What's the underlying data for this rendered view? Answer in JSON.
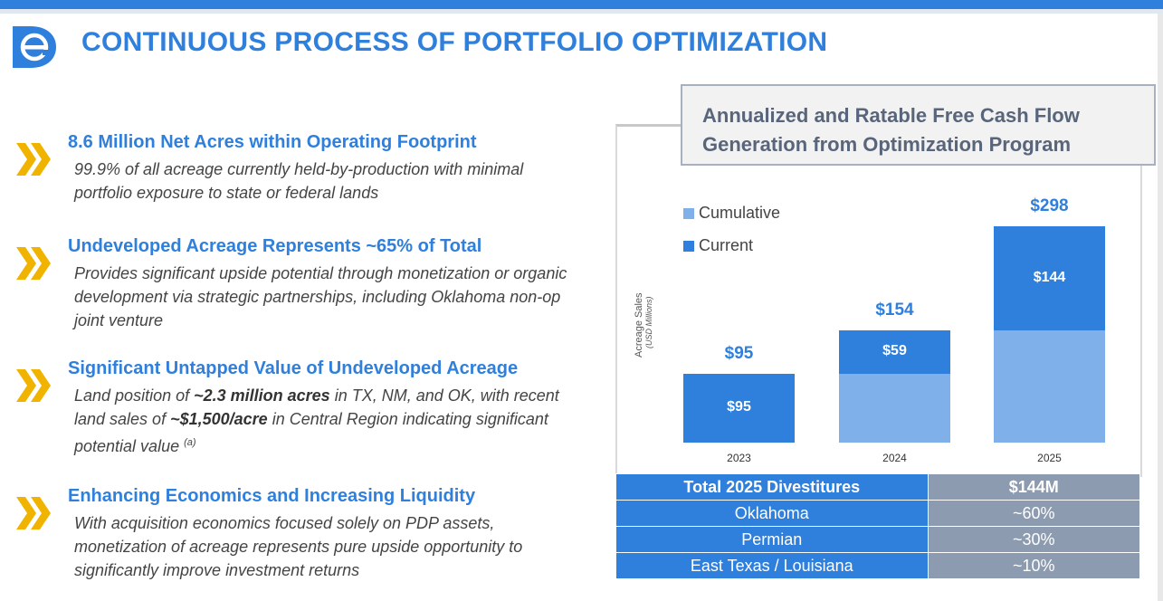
{
  "page": {
    "title": "CONTINUOUS PROCESS OF PORTFOLIO OPTIMIZATION",
    "logo_icon": "company-logo-icon",
    "colors": {
      "accent": "#2f7fdc",
      "gold": "#f0b400",
      "light_bar": "#7fb0ea",
      "dark_bar": "#2f7fdc",
      "grey_col": "#8c9bb0"
    }
  },
  "bullets": [
    {
      "icon": "double-chevron-icon",
      "heading": "8.6 Million Net Acres within Operating Footprint",
      "text_parts": [
        "99.9% of all acreage currently held-by-production with minimal portfolio exposure to state or federal lands"
      ]
    },
    {
      "icon": "double-chevron-icon",
      "heading": "Undeveloped Acreage Represents ~65% of Total",
      "text_parts": [
        "Provides significant upside potential through monetization or organic development via strategic partnerships, including Oklahoma non-op joint venture"
      ]
    },
    {
      "icon": "double-chevron-icon",
      "heading": "Significant Untapped Value of Undeveloped Acreage",
      "text_parts": [
        "Land position of ",
        "~2.3 million acres",
        " in TX, NM, and OK, with recent land sales of ",
        "~$1,500/acre",
        " in Central Region indicating significant potential value ",
        "(a)"
      ]
    },
    {
      "icon": "double-chevron-icon",
      "heading": "Enhancing Economics and Increasing Liquidity",
      "text_parts": [
        "With acquisition economics focused solely on PDP assets, monetization of acreage represents pure upside opportunity to significantly improve investment returns"
      ]
    }
  ],
  "callout": {
    "line1": "Annualized and Ratable Free Cash Flow",
    "line2": "Generation from Optimization Program"
  },
  "chart_data": {
    "type": "bar",
    "stacked": true,
    "title": "Annualized and Ratable Free Cash Flow Generation from Optimization Program",
    "ylabel": "Acreage Sales",
    "yunit": "(USD Millions)",
    "categories": [
      "2023",
      "2024",
      "2025"
    ],
    "series": [
      {
        "name": "Cumulative",
        "values": [
          0,
          95,
          154
        ]
      },
      {
        "name": "Current",
        "values": [
          95,
          59,
          144
        ]
      }
    ],
    "current_labels": [
      "$95",
      "$59",
      "$144"
    ],
    "totals": [
      95,
      154,
      298
    ],
    "total_labels": [
      "$95",
      "$154",
      "$298"
    ],
    "ylim": [
      0,
      320
    ],
    "legend": "top-left"
  },
  "table": {
    "header": {
      "label": "Total 2025 Divestitures",
      "value": "$144M"
    },
    "rows": [
      {
        "label": "Oklahoma",
        "value": "~60%"
      },
      {
        "label": "Permian",
        "value": "~30%"
      },
      {
        "label": "East Texas / Louisiana",
        "value": "~10%"
      }
    ]
  }
}
